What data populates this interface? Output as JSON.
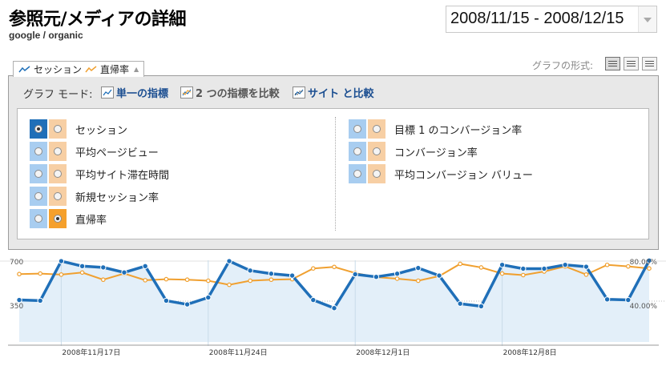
{
  "header": {
    "title": "参照元/メディアの詳細",
    "subtitle": "google / organic",
    "date_range": "2008/11/15 - 2008/12/15"
  },
  "metric_tab": {
    "label_primary": "セッション",
    "label_secondary": "直帰率"
  },
  "graph_format": {
    "label": "グラフの形式:",
    "buttons": [
      "graph-view",
      "table-view",
      "list-view"
    ]
  },
  "graph_mode": {
    "label": "グラフ モード:",
    "options": [
      {
        "label": "単一の指標",
        "state": "active"
      },
      {
        "label": "2 つの指標を比較",
        "state": "disabled"
      },
      {
        "label": "サイト と比較",
        "state": "link"
      }
    ]
  },
  "metrics_left": [
    {
      "label": "セッション",
      "blue": true,
      "orange": false
    },
    {
      "label": "平均ページビュー",
      "blue": false,
      "orange": false
    },
    {
      "label": "平均サイト滞在時間",
      "blue": false,
      "orange": false
    },
    {
      "label": "新規セッション率",
      "blue": false,
      "orange": false
    },
    {
      "label": "直帰率",
      "blue": false,
      "orange": true
    }
  ],
  "metrics_right": [
    {
      "label": "目標 1 のコンバージョン率",
      "blue": false,
      "orange": false
    },
    {
      "label": "コンバージョン率",
      "blue": false,
      "orange": false
    },
    {
      "label": "平均コンバージョン バリュー",
      "blue": false,
      "orange": false
    }
  ],
  "colors": {
    "blue_series": "#1f6fb8",
    "orange_series": "#f0a030",
    "area_fill": "#e3eff9"
  },
  "chart_data": {
    "type": "line",
    "x": [
      "2008-11-15",
      "2008-11-16",
      "2008-11-17",
      "2008-11-18",
      "2008-11-19",
      "2008-11-20",
      "2008-11-21",
      "2008-11-22",
      "2008-11-23",
      "2008-11-24",
      "2008-11-25",
      "2008-11-26",
      "2008-11-27",
      "2008-11-28",
      "2008-11-29",
      "2008-11-30",
      "2008-12-01",
      "2008-12-02",
      "2008-12-03",
      "2008-12-04",
      "2008-12-05",
      "2008-12-06",
      "2008-12-07",
      "2008-12-08",
      "2008-12-09",
      "2008-12-10",
      "2008-12-11",
      "2008-12-12",
      "2008-12-13",
      "2008-12-14",
      "2008-12-15"
    ],
    "x_tick_labels": [
      "2008年11月17日",
      "2008年11月24日",
      "2008年12月1日",
      "2008年12月8日"
    ],
    "left_axis": {
      "ticks": [
        "700",
        "350"
      ],
      "ylim": [
        0,
        700
      ]
    },
    "right_axis": {
      "ticks": [
        "80.00%",
        "40.00%"
      ],
      "ylim": [
        0,
        80
      ]
    },
    "series": [
      {
        "name": "セッション",
        "axis": "left",
        "values": [
          360,
          354,
          693,
          650,
          639,
          596,
          650,
          354,
          322,
          381,
          693,
          612,
          585,
          569,
          360,
          290,
          580,
          558,
          585,
          634,
          569,
          328,
          306,
          661,
          628,
          628,
          661,
          645,
          365,
          360,
          698
        ]
      },
      {
        "name": "直帰率",
        "axis": "right",
        "values": [
          66.5,
          67.0,
          66.0,
          68.0,
          61.0,
          67.0,
          60.5,
          61.5,
          61.0,
          60.0,
          56.0,
          60.0,
          61.0,
          61.5,
          72.0,
          73.5,
          67.5,
          63.5,
          62.0,
          60.0,
          64.5,
          76.5,
          73.0,
          67.0,
          65.5,
          69.0,
          74.0,
          66.0,
          75.5,
          74.0,
          72.0
        ]
      }
    ]
  }
}
